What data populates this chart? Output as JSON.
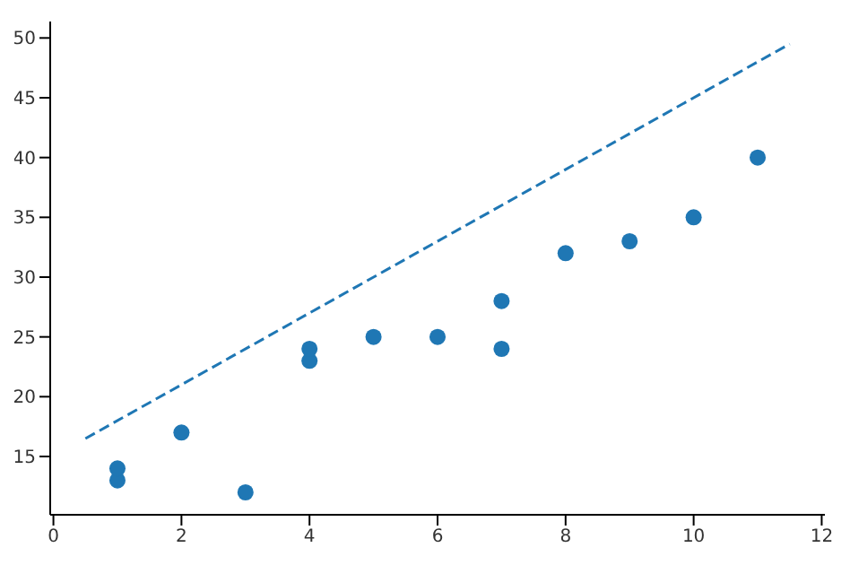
{
  "chart_data": {
    "type": "scatter",
    "xlim": [
      -0.05,
      12.05
    ],
    "ylim": [
      10.125,
      51.375
    ],
    "xticks": [
      0,
      2,
      4,
      6,
      8,
      10,
      12
    ],
    "yticks": [
      15,
      20,
      25,
      30,
      35,
      40,
      45,
      50
    ],
    "grid": false,
    "legend": false,
    "marker": "circle",
    "series": [
      {
        "color": "#1f77b4",
        "x": [
          1,
          1,
          2,
          3,
          4,
          4,
          5,
          6,
          7,
          7,
          8,
          9,
          10,
          11
        ],
        "values": [
          13,
          14,
          17,
          12,
          23,
          24,
          25,
          25,
          24,
          28,
          32,
          33,
          35,
          40
        ]
      },
      {
        "type": "line",
        "color": "#1f77b4",
        "line_style": "dashed",
        "marker": "none",
        "x": [
          0.5,
          11.5
        ],
        "values": [
          16.5,
          49.5
        ]
      }
    ]
  }
}
